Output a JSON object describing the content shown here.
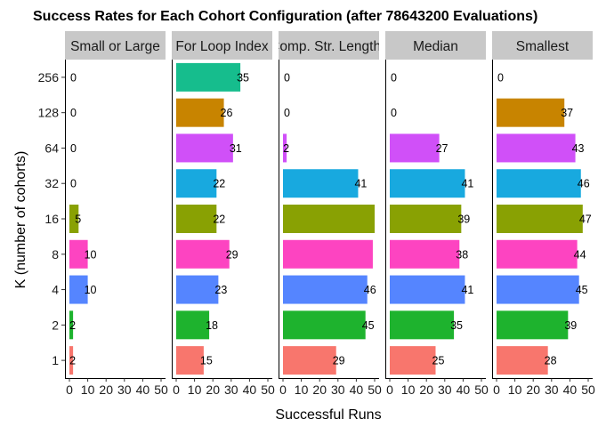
{
  "chart_data": {
    "type": "bar",
    "orientation": "horizontal",
    "title": "Success Rates for Each Cohort Configuration (after 78643200 Evaluations)",
    "xlabel": "Successful Runs",
    "ylabel": "K (number of cohorts)",
    "categories": [
      "1",
      "2",
      "4",
      "8",
      "16",
      "32",
      "64",
      "128",
      "256"
    ],
    "xlim": [
      0,
      50
    ],
    "xticks": [
      "0",
      "10",
      "20",
      "30",
      "40",
      "50"
    ],
    "grid": false,
    "legend": "none",
    "category_colors": [
      "#F8766D",
      "#1EB32E",
      "#5585FF",
      "#FD44C1",
      "#89A103",
      "#18A9DF",
      "#D050F8",
      "#C88400",
      "#16BD8D"
    ],
    "series": [
      {
        "name": "Small or Large",
        "values": [
          2,
          2,
          10,
          10,
          5,
          0,
          0,
          0,
          0
        ]
      },
      {
        "name": "For Loop Index",
        "values": [
          15,
          18,
          23,
          29,
          22,
          22,
          31,
          26,
          35
        ]
      },
      {
        "name": "Comp. Str. Lengths",
        "values": [
          29,
          45,
          46,
          49,
          50,
          41,
          2,
          0,
          0
        ],
        "labeled": [
          true,
          true,
          true,
          false,
          false,
          true,
          true,
          true,
          true
        ]
      },
      {
        "name": "Median",
        "values": [
          25,
          35,
          41,
          38,
          39,
          41,
          27,
          0,
          0
        ]
      },
      {
        "name": "Smallest",
        "values": [
          28,
          39,
          45,
          44,
          47,
          46,
          43,
          37,
          0
        ]
      }
    ]
  }
}
